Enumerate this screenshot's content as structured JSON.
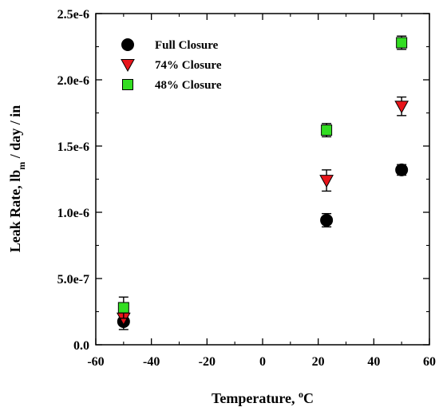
{
  "chart_data": {
    "type": "scatter",
    "xlabel": "Temperature, °C",
    "ylabel": "Leak Rate, lb_m / day / in",
    "xlabel_parts": {
      "main": "Temperature, ",
      "sup": "o",
      "tail": "C"
    },
    "ylabel_parts": {
      "main": "Leak Rate, lb",
      "sub": "m",
      "tail": " / day / in"
    },
    "xlim": [
      -60,
      60
    ],
    "ylim": [
      0,
      2.5e-06
    ],
    "xticks": [
      -60,
      -40,
      -20,
      0,
      20,
      40,
      60
    ],
    "xtick_labels": [
      "-60",
      "-40",
      "-20",
      "0",
      "20",
      "40",
      "60"
    ],
    "yticks": [
      0,
      5e-07,
      1e-06,
      1.5e-06,
      2e-06,
      2.5e-06
    ],
    "ytick_labels": [
      "0.0",
      "5.0e-7",
      "1.0e-6",
      "1.5e-6",
      "2.0e-6",
      "2.5e-6"
    ],
    "grid": false,
    "legend_position": "top-left",
    "series": [
      {
        "name": "Full Closure",
        "marker": "circle",
        "color": "#000000",
        "x": [
          -50,
          23,
          50
        ],
        "y": [
          1.75e-07,
          9.4e-07,
          1.32e-06
        ],
        "err": [
          6e-08,
          5e-08,
          4e-08
        ]
      },
      {
        "name": "74% Closure",
        "marker": "triangle-down",
        "color": "#e8151b",
        "x": [
          -50,
          23,
          50
        ],
        "y": [
          2e-07,
          1.24e-06,
          1.8e-06
        ],
        "err": [
          4e-08,
          8e-08,
          7e-08
        ]
      },
      {
        "name": "48% Closure",
        "marker": "square",
        "color": "#33dd22",
        "x": [
          -50,
          23,
          50
        ],
        "y": [
          2.8e-07,
          1.62e-06,
          2.28e-06
        ],
        "err": [
          8e-08,
          5e-08,
          5e-08
        ]
      }
    ]
  }
}
